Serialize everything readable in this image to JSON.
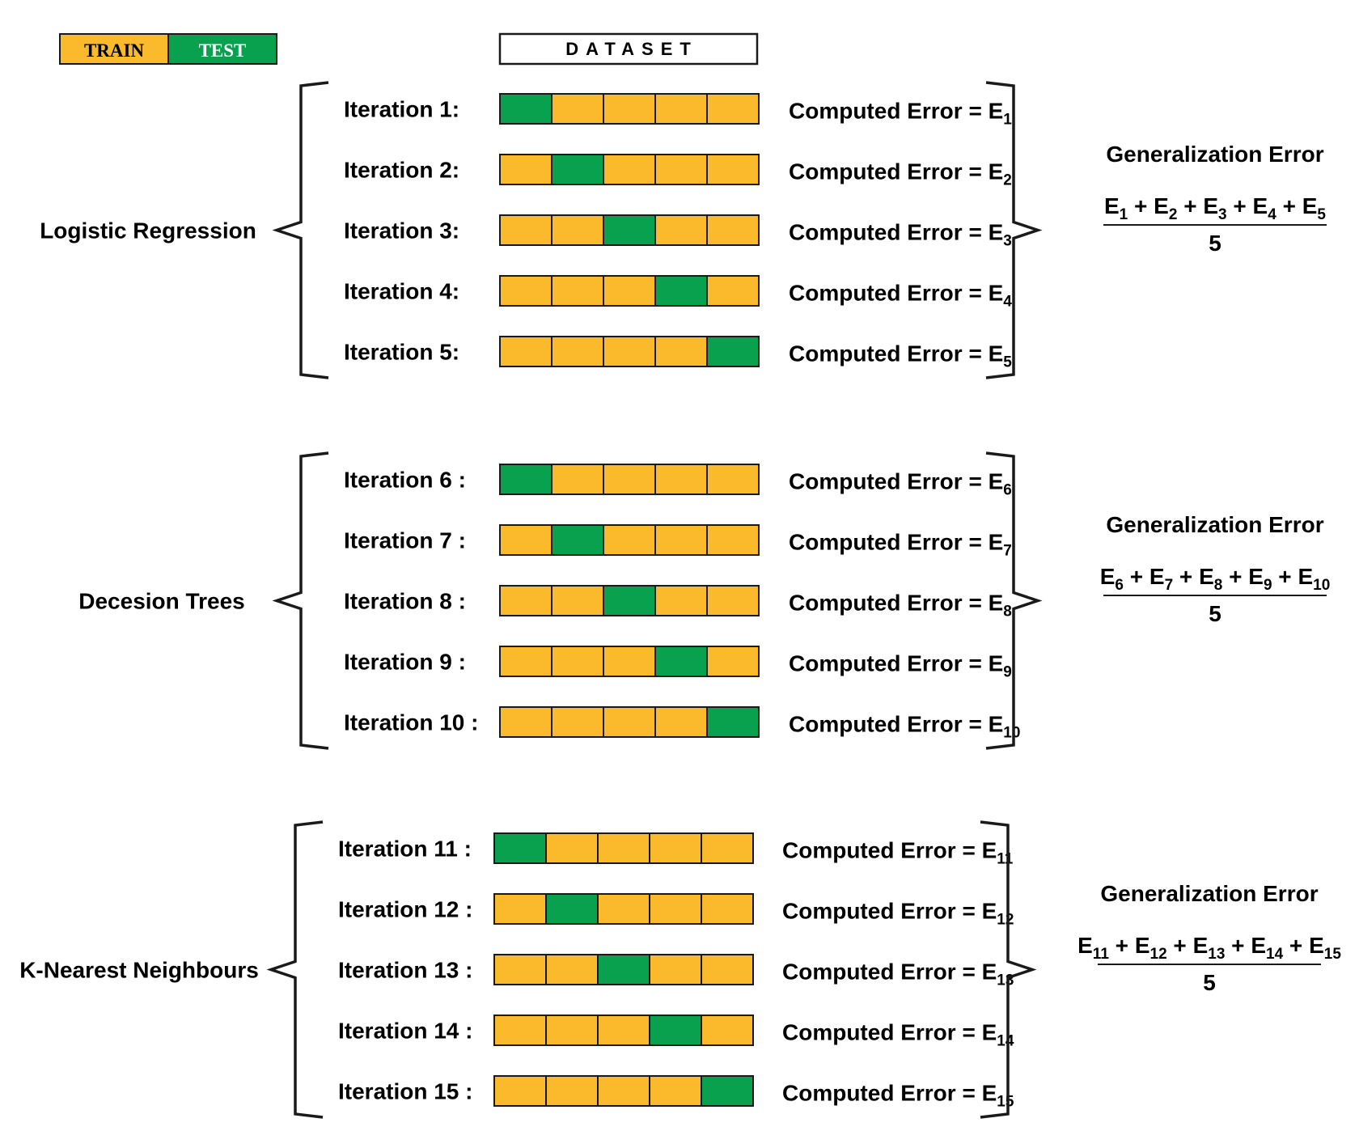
{
  "legend": {
    "train_label": "TRAIN",
    "test_label": "TEST"
  },
  "dataset_label": "DATASET",
  "colors": {
    "train": "#FBBA2B",
    "test": "#0AA14E",
    "line": "#1a1a1a"
  },
  "generalization_title": "Generalization Error",
  "groups": [
    {
      "model": "Logistic Regression",
      "divisor": "5",
      "iterations": [
        {
          "label": "Iteration 1:",
          "test_fold": 1,
          "error_label": "Computed Error = E",
          "error_sub": "1"
        },
        {
          "label": "Iteration 2:",
          "test_fold": 2,
          "error_label": "Computed Error = E",
          "error_sub": "2"
        },
        {
          "label": "Iteration 3:",
          "test_fold": 3,
          "error_label": "Computed Error = E",
          "error_sub": "3"
        },
        {
          "label": "Iteration 4:",
          "test_fold": 4,
          "error_label": "Computed Error = E",
          "error_sub": "4"
        },
        {
          "label": "Iteration 5:",
          "test_fold": 5,
          "error_label": "Computed Error = E",
          "error_sub": "5"
        }
      ]
    },
    {
      "model": "Decesion Trees",
      "divisor": "5",
      "iterations": [
        {
          "label": "Iteration 6 :",
          "test_fold": 1,
          "error_label": "Computed Error = E",
          "error_sub": "6"
        },
        {
          "label": "Iteration 7 :",
          "test_fold": 2,
          "error_label": "Computed Error = E",
          "error_sub": "7"
        },
        {
          "label": "Iteration 8 :",
          "test_fold": 3,
          "error_label": "Computed Error = E",
          "error_sub": "8"
        },
        {
          "label": "Iteration 9 :",
          "test_fold": 4,
          "error_label": "Computed Error = E",
          "error_sub": "9"
        },
        {
          "label": "Iteration 10 :",
          "test_fold": 5,
          "error_label": "Computed Error = E",
          "error_sub": "10"
        }
      ]
    },
    {
      "model": "K-Nearest Neighbours",
      "divisor": "5",
      "iterations": [
        {
          "label": "Iteration 11 :",
          "test_fold": 1,
          "error_label": "Computed Error = E",
          "error_sub": "11"
        },
        {
          "label": "Iteration 12 :",
          "test_fold": 2,
          "error_label": "Computed Error = E",
          "error_sub": "12"
        },
        {
          "label": "Iteration 13 :",
          "test_fold": 3,
          "error_label": "Computed Error = E",
          "error_sub": "13"
        },
        {
          "label": "Iteration 14 :",
          "test_fold": 4,
          "error_label": "Computed Error = E",
          "error_sub": "14"
        },
        {
          "label": "Iteration 15 :",
          "test_fold": 5,
          "error_label": "Computed Error = E",
          "error_sub": "15"
        }
      ]
    }
  ]
}
